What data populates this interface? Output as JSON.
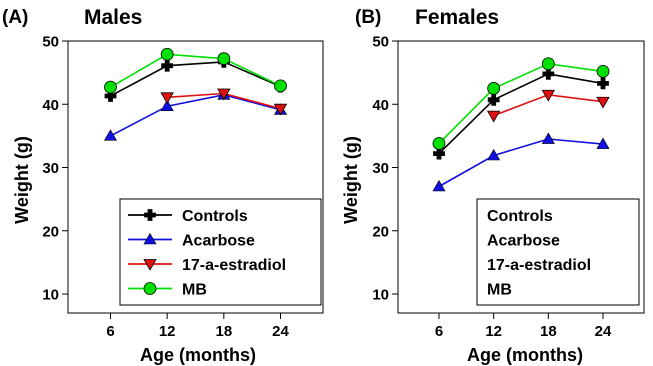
{
  "chart_data": [
    {
      "type": "line",
      "panel_label": "(A)",
      "title": "Males",
      "xlabel": "Age (months)",
      "ylabel": "Weight (g)",
      "x": [
        6,
        12,
        18,
        24
      ],
      "xticks": [
        "6",
        "12",
        "18",
        "24"
      ],
      "yticks": [
        "10",
        "20",
        "30",
        "40",
        "50"
      ],
      "ylim": [
        7,
        50
      ],
      "grid": false,
      "legend_position": "bottom-right",
      "legend_markers": true,
      "series": [
        {
          "name": "Controls",
          "values": [
            41.3,
            46.1,
            46.7,
            42.8
          ],
          "color": "#000000",
          "marker": "plus"
        },
        {
          "name": "Acarbose",
          "values": [
            35.0,
            39.7,
            41.5,
            39.1
          ],
          "color": "#1010e0",
          "marker": "triangle-up"
        },
        {
          "name": "17-a-estradiol",
          "values": [
            null,
            41.1,
            41.7,
            39.3
          ],
          "color": "#e01010",
          "marker": "triangle-down"
        },
        {
          "name": "MB",
          "values": [
            42.7,
            47.9,
            47.2,
            42.9
          ],
          "color": "#00e000",
          "marker": "circle"
        }
      ]
    },
    {
      "type": "line",
      "panel_label": "(B)",
      "title": "Females",
      "xlabel": "Age (months)",
      "ylabel": "Weight (g)",
      "x": [
        6,
        12,
        18,
        24
      ],
      "xticks": [
        "6",
        "12",
        "18",
        "24"
      ],
      "yticks": [
        "10",
        "20",
        "30",
        "40",
        "50"
      ],
      "ylim": [
        7,
        50
      ],
      "grid": false,
      "legend_position": "bottom-right",
      "legend_markers": false,
      "series": [
        {
          "name": "Controls",
          "values": [
            32.2,
            40.7,
            44.8,
            43.3
          ],
          "color": "#000000",
          "marker": "plus"
        },
        {
          "name": "Acarbose",
          "values": [
            27.0,
            31.9,
            34.5,
            33.7
          ],
          "color": "#1010e0",
          "marker": "triangle-up"
        },
        {
          "name": "17-a-estradiol",
          "values": [
            null,
            38.2,
            41.5,
            40.4
          ],
          "color": "#e01010",
          "marker": "triangle-down"
        },
        {
          "name": "MB",
          "values": [
            33.8,
            42.5,
            46.4,
            45.2
          ],
          "color": "#00e000",
          "marker": "circle"
        }
      ]
    }
  ]
}
